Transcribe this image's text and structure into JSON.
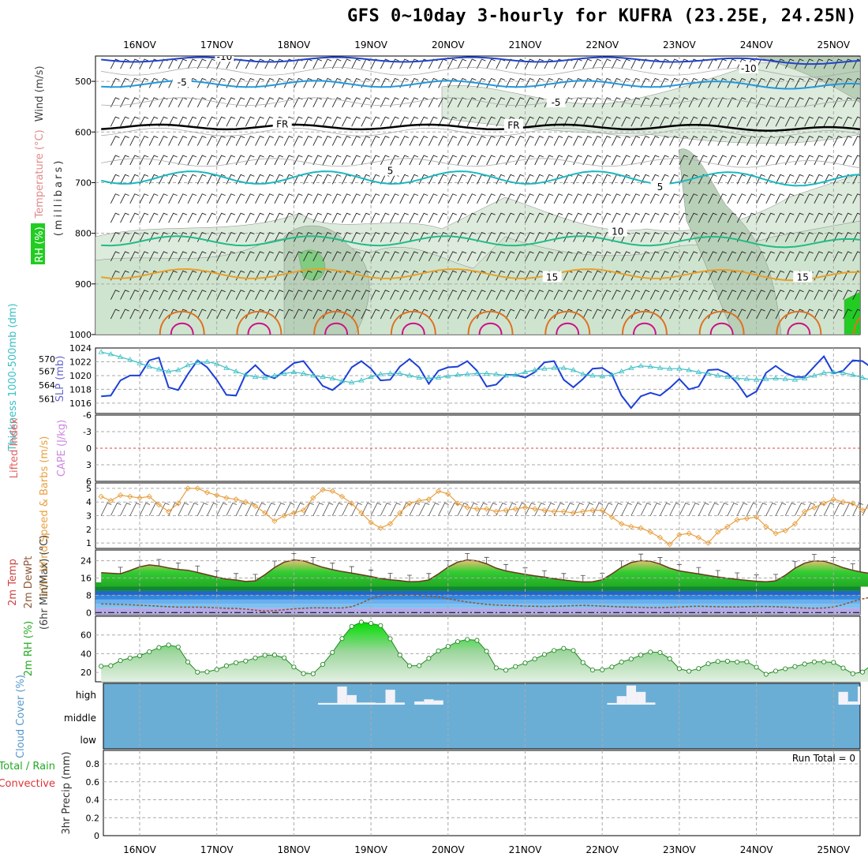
{
  "title": "GFS 0~10day 3-hourly for KUFRA (23.25E, 24.25N)",
  "colors": {
    "rh_fill": "#c5dcc5",
    "temp_orange": "#e8a02a",
    "temp_cyan": "#1ab8c0",
    "wind_blue": "#2244cc",
    "slp_blue": "#1c3fd8",
    "thickness_cyan": "#3bbfc6",
    "wind10m": "#e8a040",
    "cloud_blue": "#6aaed6",
    "rh2m_green": "#22cc22",
    "dew_brown": "#8b5a3a",
    "lifted_red": "#e04040"
  },
  "chart_data": [
    {
      "panel": "upper-air",
      "type": "contour",
      "x": [
        "16NOV",
        "17NOV",
        "18NOV",
        "19NOV",
        "20NOV",
        "21NOV",
        "22NOV",
        "23NOV",
        "24NOV",
        "25NOV"
      ],
      "y_ticks": [
        "500",
        "600",
        "700",
        "800",
        "900",
        "1000"
      ],
      "ylim": [
        1000,
        450
      ],
      "ylabel": "Wind (m/s)",
      "ylabel2": "Temperature (°C)",
      "ylabel3": "RH (%)",
      "ylabel4": "(millibars)",
      "contour_labels": [
        {
          "text": "-10",
          "day": 1.1,
          "p": 455
        },
        {
          "text": "-10",
          "day": 7.9,
          "p": 478
        },
        {
          "text": "-5",
          "day": 0.55,
          "p": 505
        },
        {
          "text": "-5",
          "day": 5.4,
          "p": 545
        },
        {
          "text": "FR",
          "day": 1.85,
          "p": 588
        },
        {
          "text": "FR",
          "day": 4.85,
          "p": 590
        },
        {
          "text": "5",
          "day": 3.25,
          "p": 680
        },
        {
          "text": "5",
          "day": 6.75,
          "p": 712
        },
        {
          "text": "10",
          "day": 6.2,
          "p": 800
        },
        {
          "text": "15",
          "day": 5.35,
          "p": 890
        },
        {
          "text": "15",
          "day": 8.6,
          "p": 890
        }
      ]
    },
    {
      "panel": "slp-thickness",
      "type": "line",
      "ylabel_left": "Thickness 1000-500mb (dm)",
      "ylabel_right": "SLP (mb)",
      "y_ticks_left": [
        "561",
        "564",
        "567",
        "570"
      ],
      "y_ticks_right": [
        "1016",
        "1018",
        "1020",
        "1022",
        "1024"
      ],
      "ylim": [
        1014.5,
        1024
      ],
      "series": [
        {
          "name": "SLP",
          "values": [
            1017.0,
            1017.1,
            1019.3,
            1020.0,
            1020.0,
            1022.2,
            1022.6,
            1018.3,
            1017.9,
            1020.2,
            1022.2,
            1021.2,
            1019.4,
            1017.2,
            1017.1,
            1020.2,
            1021.5,
            1020.1,
            1019.6,
            1020.7,
            1021.8,
            1022.1,
            1020.3,
            1018.5,
            1017.9,
            1019.0,
            1021.2,
            1022.1,
            1021.0,
            1019.3,
            1019.4,
            1021.3,
            1022.4,
            1021.2,
            1018.8,
            1020.7,
            1021.2,
            1021.3,
            1022.1,
            1020.7,
            1018.4,
            1018.7,
            1020.1,
            1020.1,
            1019.7,
            1020.5,
            1021.9,
            1022.1,
            1019.4,
            1018.3,
            1019.5,
            1021.0,
            1021.1,
            1020.2,
            1017.1,
            1015.3,
            1017.0,
            1017.5,
            1017.1,
            1018.2,
            1019.5,
            1018.0,
            1018.4,
            1020.8,
            1020.9,
            1020.3,
            1018.9,
            1016.9,
            1017.7,
            1020.4,
            1021.4,
            1020.4,
            1019.8,
            1019.8,
            1021.3,
            1022.8,
            1020.3,
            1020.7,
            1022.2,
            1022.1,
            1021.1,
            1021.7,
            1023.2,
            1022.6,
            1020.0,
            1019.1,
            1020.6,
            1020.9,
            1020.9,
            1021.3,
            1022.7
          ]
        },
        {
          "name": "Thickness",
          "values": [
            1023.4,
            1023.1,
            1022.7,
            1022.3,
            1021.8,
            1021.3,
            1020.9,
            1020.6,
            1020.8,
            1021.5,
            1021.9,
            1022.0,
            1021.7,
            1021.1,
            1020.6,
            1020.1,
            1019.8,
            1019.7,
            1020.0,
            1020.3,
            1020.5,
            1020.3,
            1020.0,
            1019.8,
            1019.6,
            1019.2,
            1019.0,
            1019.3,
            1019.8,
            1020.2,
            1020.3,
            1020.3,
            1020.0,
            1019.7,
            1019.6,
            1019.7,
            1019.9,
            1020.1,
            1020.2,
            1020.3,
            1020.3,
            1020.2,
            1020.0,
            1020.1,
            1020.5,
            1020.8,
            1021.0,
            1021.1,
            1021.1,
            1020.8,
            1020.2,
            1020.0,
            1019.9,
            1020.1,
            1020.6,
            1021.1,
            1021.4,
            1021.3,
            1021.1,
            1021.0,
            1021.0,
            1020.8,
            1020.5,
            1020.3,
            1020.0,
            1019.8,
            1019.6,
            1019.5,
            1019.4,
            1019.5,
            1019.6,
            1019.5,
            1019.4,
            1019.6,
            1020.0,
            1020.4,
            1020.5,
            1020.4,
            1020.1,
            1019.7,
            1019.3,
            1019.0,
            1018.8,
            1018.6,
            1018.5,
            1018.3,
            1018.3,
            1018.1,
            1017.6,
            1016.7,
            1015.5
          ]
        }
      ]
    },
    {
      "panel": "cape-lifted",
      "type": "line",
      "ylabel_left": "Lifted Index",
      "ylabel_right": "CAPE (J/kg)",
      "y_ticks": [
        "6",
        "3",
        "0",
        "-3",
        "-6"
      ],
      "ylim": [
        -6,
        6
      ],
      "lifted_index": 0
    },
    {
      "panel": "wind10m",
      "type": "line",
      "ylabel": "10m Wind Speed & Barbs (m/s)",
      "y_ticks": [
        "1",
        "2",
        "3",
        "4",
        "5"
      ],
      "ylim": [
        0.6,
        5.4
      ],
      "values": [
        4.4,
        4.1,
        4.5,
        4.4,
        4.3,
        4.4,
        3.8,
        3.3,
        3.9,
        5.0,
        5.0,
        4.7,
        4.5,
        4.3,
        4.2,
        4.0,
        3.7,
        3.2,
        2.6,
        3.0,
        3.2,
        3.4,
        4.3,
        4.9,
        4.8,
        4.4,
        3.9,
        3.2,
        2.5,
        2.1,
        2.4,
        3.2,
        3.9,
        4.1,
        4.2,
        4.8,
        4.6,
        3.9,
        3.6,
        3.5,
        3.5,
        3.3,
        3.4,
        3.5,
        3.6,
        3.5,
        3.4,
        3.3,
        3.3,
        3.2,
        3.3,
        3.4,
        3.4,
        2.9,
        2.4,
        2.2,
        2.1,
        1.8,
        1.4,
        0.9,
        1.6,
        1.7,
        1.4,
        1.0,
        1.8,
        2.2,
        2.7,
        2.8,
        2.9,
        2.2,
        1.7,
        1.9,
        2.4,
        3.3,
        3.6,
        3.9,
        4.2,
        4.0,
        3.9,
        3.4,
        3.7,
        4.3,
        4.4,
        4.9,
        4.9,
        4.5,
        4.1,
        3.9,
        4.2,
        4.2,
        3.7
      ]
    },
    {
      "panel": "temp2m",
      "type": "area",
      "ylabel": "2m Temp",
      "ylabel2": "2m DewPt",
      "ylabel3": "(6hr Min/Max) (°C)",
      "y_ticks": [
        "0",
        "8",
        "16",
        "24"
      ],
      "ylim": [
        -1,
        29
      ],
      "series": [
        {
          "name": "2m Temp",
          "values": [
            18.5,
            18.2,
            18.0,
            19.5,
            21.2,
            22.1,
            21.6,
            20.7,
            20.0,
            19.6,
            18.6,
            17.5,
            16.4,
            15.5,
            15.1,
            14.4,
            14.7,
            17.6,
            20.9,
            23.4,
            24.4,
            24.0,
            22.5,
            21.0,
            19.9,
            19.0,
            18.3,
            17.5,
            16.7,
            15.8,
            15.2,
            14.8,
            14.3,
            14.4,
            15.1,
            17.9,
            21.1,
            23.4,
            24.4,
            24.0,
            22.6,
            20.6,
            19.3,
            18.5,
            17.7,
            17.0,
            16.4,
            15.7,
            15.1,
            14.6,
            14.2,
            14.3,
            15.2,
            17.9,
            21.0,
            23.2,
            24.1,
            23.8,
            22.5,
            20.6,
            19.3,
            18.6,
            17.9,
            17.2,
            16.5,
            15.9,
            15.4,
            14.9,
            14.5,
            14.3,
            14.7,
            17.3,
            20.6,
            22.9,
            24.0,
            23.8,
            22.5,
            20.8,
            19.6,
            18.7,
            18.0,
            17.2,
            16.5,
            15.8,
            15.2,
            14.8,
            14.4,
            14.1,
            13.9,
            14.0,
            14.2
          ]
        },
        {
          "name": "2m DewPt",
          "values": [
            4.0,
            3.9,
            3.8,
            3.6,
            3.4,
            3.2,
            2.9,
            2.7,
            2.5,
            2.5,
            2.5,
            2.4,
            2.2,
            2.0,
            1.9,
            1.6,
            1.1,
            0.7,
            0.9,
            1.3,
            1.7,
            2.0,
            2.2,
            2.2,
            2.1,
            2.1,
            2.7,
            4.4,
            6.5,
            7.6,
            8.1,
            8.2,
            8.0,
            7.8,
            7.6,
            7.2,
            6.4,
            5.6,
            4.9,
            4.3,
            3.8,
            3.5,
            3.3,
            3.2,
            3.0,
            2.9,
            2.8,
            2.9,
            3.0,
            3.2,
            3.3,
            3.2,
            3.0,
            2.8,
            2.6,
            2.5,
            2.4,
            2.3,
            2.3,
            2.4,
            2.6,
            2.8,
            2.9,
            2.8,
            2.7,
            2.6,
            2.6,
            2.7,
            2.8,
            2.8,
            2.7,
            2.5,
            2.3,
            2.1,
            2.0,
            2.1,
            2.6,
            3.7,
            5.1,
            6.3,
            7.2,
            7.8,
            7.4,
            5.2,
            3.4,
            3.1,
            3.4,
            4.0,
            4.4,
            4.5,
            4.3
          ]
        }
      ]
    },
    {
      "panel": "rh2m",
      "type": "area",
      "ylabel": "2m RH (%)",
      "y_ticks": [
        "20",
        "40",
        "60"
      ],
      "ylim": [
        10,
        80
      ],
      "values": [
        26.6,
        27.2,
        32.7,
        35.4,
        37.8,
        42.1,
        46.6,
        49.3,
        47.2,
        31.2,
        20.3,
        20.6,
        23.1,
        27.1,
        30.3,
        32.2,
        35.5,
        38.3,
        38.6,
        35.6,
        25.8,
        18.8,
        18.6,
        28.6,
        41.4,
        56.2,
        69.2,
        73.8,
        72.4,
        70.1,
        56.0,
        38.6,
        27.1,
        27.3,
        35.0,
        43.0,
        47.8,
        52.9,
        55.2,
        54.3,
        42.6,
        24.8,
        22.4,
        26.3,
        30.1,
        34.4,
        39.2,
        43.4,
        45.7,
        43.4,
        30.6,
        22.6,
        22.8,
        25.8,
        31.1,
        34.3,
        38.5,
        41.8,
        41.3,
        34.7,
        24.0,
        21.3,
        24.2,
        29.3,
        31.7,
        32.0,
        31.2,
        31.4,
        25.6,
        18.0,
        21.5,
        23.9,
        26.3,
        29.0,
        31.3,
        31.3,
        30.7,
        24.7,
        18.7,
        20.4,
        28.4,
        37.3,
        48.4,
        60.3,
        64.6,
        56.0,
        28.8,
        24.6,
        37.5,
        55.5,
        72.8
      ]
    },
    {
      "panel": "cloud",
      "type": "bar",
      "ylabel": "Cloud Cover (%)",
      "y_ticks": [
        "high",
        "middle",
        "low"
      ],
      "series": [
        {
          "name": "high",
          "values": [
            0,
            0,
            0,
            0,
            0,
            0,
            0,
            0,
            0,
            0,
            0,
            0,
            0,
            0,
            0,
            0,
            0,
            0,
            0,
            0,
            0,
            0,
            0,
            8,
            8,
            85,
            45,
            10,
            10,
            8,
            70,
            10,
            0,
            15,
            25,
            20,
            0,
            0,
            0,
            0,
            0,
            0,
            0,
            0,
            0,
            0,
            0,
            0,
            0,
            0,
            0,
            0,
            0,
            8,
            40,
            90,
            60,
            10,
            0,
            0,
            0,
            0,
            0,
            0,
            0,
            0,
            0,
            0,
            0,
            0,
            0,
            0,
            0,
            0,
            0,
            0,
            0,
            60,
            15,
            85,
            10,
            10,
            0,
            0,
            0,
            0,
            0,
            0,
            0,
            0,
            0
          ]
        },
        {
          "name": "middle",
          "values": [
            0,
            0,
            0,
            0,
            0,
            0,
            0,
            0,
            0,
            0,
            0,
            0,
            0,
            0,
            0,
            0,
            0,
            0,
            0,
            0,
            0,
            0,
            0,
            0,
            0,
            0,
            0,
            0,
            0,
            0,
            0,
            0,
            0,
            0,
            0,
            0,
            0,
            0,
            0,
            0,
            0,
            0,
            0,
            0,
            0,
            0,
            0,
            0,
            0,
            0,
            0,
            0,
            0,
            0,
            0,
            0,
            0,
            0,
            0,
            0,
            0,
            0,
            0,
            0,
            0,
            0,
            0,
            0,
            0,
            0,
            0,
            0,
            0,
            0,
            0,
            0,
            0,
            0,
            0,
            0,
            0,
            8,
            10,
            12,
            40,
            25,
            25,
            20,
            12,
            45,
            12
          ]
        }
      ]
    },
    {
      "panel": "precip",
      "type": "bar",
      "ylabel": "3hr Precip (mm)",
      "ylabel2": "Total / Rain",
      "ylabel3": "Convective",
      "annotation": "Run Total = 0",
      "y_ticks": [
        "0",
        "0.2",
        "0.4",
        "0.6",
        "0.8"
      ],
      "ylim": [
        0,
        0.95
      ]
    }
  ]
}
